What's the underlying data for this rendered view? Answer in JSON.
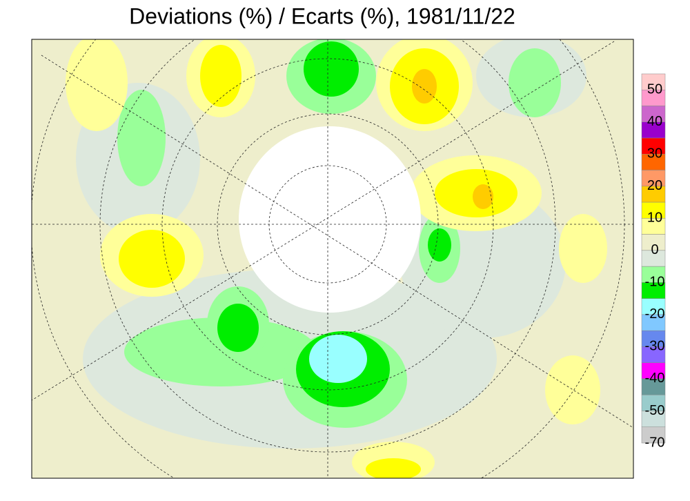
{
  "title": "Deviations (%) / Ecarts (%), 1981/11/22",
  "colorbar": {
    "colors": [
      "#ffcccc",
      "#ff99cc",
      "#cc66cc",
      "#9900cc",
      "#ff0000",
      "#ff6600",
      "#ff9966",
      "#ffcc00",
      "#ffff00",
      "#ffff99",
      "#eeeecc",
      "#dde8dd",
      "#99ff99",
      "#00ee00",
      "#99ffff",
      "#80c8ff",
      "#6688ee",
      "#8866ff",
      "#ff00ff",
      "#669999",
      "#99cccc",
      "#cce0dd",
      "#cccccc"
    ],
    "labels": [
      50,
      40,
      30,
      20,
      10,
      0,
      -10,
      -20,
      -30,
      -40,
      -50,
      -70
    ]
  }
}
